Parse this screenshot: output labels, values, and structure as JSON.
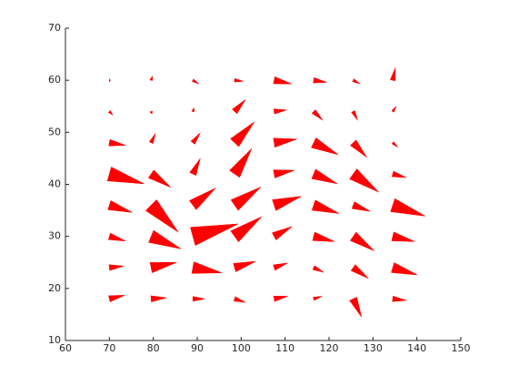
{
  "chart_data": {
    "type": "quiver",
    "color": "#ff0000",
    "xlim": [
      60,
      150
    ],
    "xticks": [
      60,
      70,
      80,
      90,
      100,
      110,
      120,
      130,
      140,
      150
    ],
    "ylim": [
      10,
      70
    ],
    "yticks": [
      10,
      20,
      30,
      40,
      50,
      60,
      70
    ],
    "x": [
      70,
      79.5,
      89,
      98.5,
      107.5,
      116.5,
      125.5,
      134.5
    ],
    "y": [
      60,
      54,
      48,
      42,
      36,
      30,
      24,
      18
    ],
    "u": [
      [
        0.3,
        0.3,
        1.4,
        2,
        4,
        3,
        1.6,
        0.6
      ],
      [
        0.8,
        0.2,
        0.3,
        2.5,
        2.9,
        2.1,
        1,
        0.8
      ],
      [
        3.7,
        1,
        1.7,
        4.5,
        5.2,
        5.6,
        3.1,
        1.2
      ],
      [
        7.9,
        4.5,
        1.7,
        3.9,
        4.6,
        5.4,
        5.8,
        3.1
      ],
      [
        5.2,
        6.2,
        5.2,
        6,
        6.2,
        5.8,
        3.9,
        7.4
      ],
      [
        3.7,
        6.8,
        10.3,
        6.2,
        4.1,
        4.8,
        4.8,
        5
      ],
      [
        3.3,
        5.8,
        6.6,
        4.8,
        3.1,
        2.3,
        3.5,
        5.6
      ],
      [
        3.5,
        3.5,
        2.7,
        2.5,
        3.1,
        1.9,
        1.9,
        3.1
      ]
    ],
    "v": [
      [
        0,
        0.8,
        -0.7,
        -0.2,
        -0.7,
        -0.4,
        -0.7,
        2.4
      ],
      [
        -0.7,
        -0.5,
        0.7,
        2.3,
        0.3,
        -1.7,
        -1.7,
        1
      ],
      [
        -0.5,
        1.8,
        1.9,
        4,
        0.7,
        -2.3,
        -2.8,
        -0.9
      ],
      [
        -1.9,
        -2.6,
        3,
        4.9,
        0.7,
        -1.9,
        -3.5,
        -0.7
      ],
      [
        -1.4,
        -5.2,
        3.3,
        3.5,
        1.7,
        -1.6,
        -1.2,
        -2.1
      ],
      [
        -0.9,
        -2.4,
        2.4,
        3.8,
        1.9,
        -1,
        -2.8,
        -1
      ],
      [
        0.3,
        1,
        -1,
        1.2,
        0.9,
        -0.9,
        -2.1,
        -1.4
      ],
      [
        0.7,
        0.2,
        0,
        -0.7,
        0.5,
        0.5,
        -3.5,
        -0.3
      ]
    ]
  }
}
